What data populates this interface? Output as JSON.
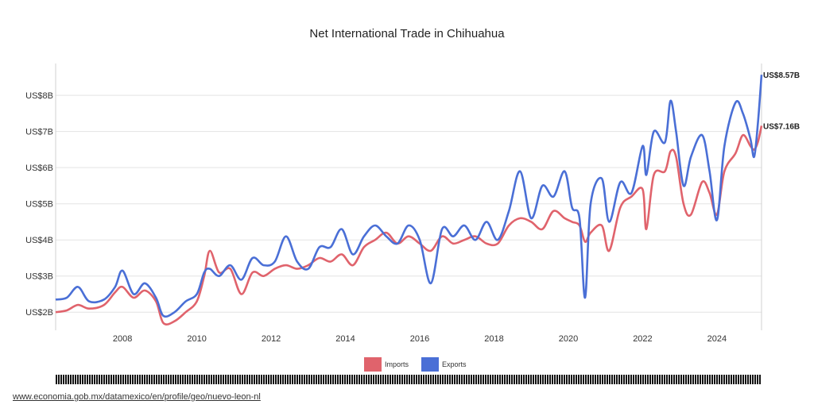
{
  "chart_data": {
    "type": "line",
    "title": "Net International Trade in Chihuahua",
    "xlabel": "",
    "ylabel": "",
    "xlim": [
      2006.2,
      2025.2
    ],
    "ylim": [
      1.5,
      8.75
    ],
    "y_ticks": [
      {
        "value": 2,
        "label": "US$2B"
      },
      {
        "value": 3,
        "label": "US$3B"
      },
      {
        "value": 4,
        "label": "US$4B"
      },
      {
        "value": 5,
        "label": "US$5B"
      },
      {
        "value": 6,
        "label": "US$6B"
      },
      {
        "value": 7,
        "label": "US$7B"
      },
      {
        "value": 8,
        "label": "US$8B"
      }
    ],
    "x_ticks": [
      {
        "value": 2008,
        "label": "2008"
      },
      {
        "value": 2010,
        "label": "2010"
      },
      {
        "value": 2012,
        "label": "2012"
      },
      {
        "value": 2014,
        "label": "2014"
      },
      {
        "value": 2016,
        "label": "2016"
      },
      {
        "value": 2018,
        "label": "2018"
      },
      {
        "value": 2020,
        "label": "2020"
      },
      {
        "value": 2022,
        "label": "2022"
      },
      {
        "value": 2024,
        "label": "2024"
      }
    ],
    "grid": "horizontal",
    "legend_position": "bottom-center",
    "series": [
      {
        "name": "Imports",
        "color": "#e0636c",
        "end_label": "US$7.16B",
        "points": [
          [
            2006.2,
            2.0
          ],
          [
            2006.5,
            2.05
          ],
          [
            2006.8,
            2.2
          ],
          [
            2007.1,
            2.1
          ],
          [
            2007.5,
            2.2
          ],
          [
            2007.8,
            2.55
          ],
          [
            2008.0,
            2.7
          ],
          [
            2008.3,
            2.4
          ],
          [
            2008.6,
            2.6
          ],
          [
            2008.9,
            2.3
          ],
          [
            2009.1,
            1.7
          ],
          [
            2009.4,
            1.75
          ],
          [
            2009.7,
            2.0
          ],
          [
            2010.0,
            2.3
          ],
          [
            2010.2,
            3.0
          ],
          [
            2010.35,
            3.7
          ],
          [
            2010.6,
            3.1
          ],
          [
            2010.9,
            3.2
          ],
          [
            2011.2,
            2.5
          ],
          [
            2011.5,
            3.1
          ],
          [
            2011.8,
            3.0
          ],
          [
            2012.1,
            3.2
          ],
          [
            2012.4,
            3.3
          ],
          [
            2012.7,
            3.2
          ],
          [
            2013.0,
            3.3
          ],
          [
            2013.3,
            3.5
          ],
          [
            2013.6,
            3.4
          ],
          [
            2013.9,
            3.6
          ],
          [
            2014.2,
            3.3
          ],
          [
            2014.5,
            3.8
          ],
          [
            2014.8,
            4.0
          ],
          [
            2015.1,
            4.2
          ],
          [
            2015.4,
            3.9
          ],
          [
            2015.7,
            4.1
          ],
          [
            2016.0,
            3.9
          ],
          [
            2016.3,
            3.7
          ],
          [
            2016.6,
            4.1
          ],
          [
            2016.9,
            3.9
          ],
          [
            2017.2,
            4.0
          ],
          [
            2017.5,
            4.1
          ],
          [
            2017.8,
            3.9
          ],
          [
            2018.1,
            3.9
          ],
          [
            2018.4,
            4.4
          ],
          [
            2018.7,
            4.6
          ],
          [
            2019.0,
            4.5
          ],
          [
            2019.3,
            4.3
          ],
          [
            2019.6,
            4.8
          ],
          [
            2019.9,
            4.6
          ],
          [
            2020.1,
            4.5
          ],
          [
            2020.3,
            4.4
          ],
          [
            2020.45,
            3.95
          ],
          [
            2020.6,
            4.2
          ],
          [
            2020.9,
            4.4
          ],
          [
            2021.1,
            3.7
          ],
          [
            2021.4,
            4.9
          ],
          [
            2021.7,
            5.2
          ],
          [
            2022.0,
            5.4
          ],
          [
            2022.1,
            4.3
          ],
          [
            2022.3,
            5.8
          ],
          [
            2022.6,
            5.9
          ],
          [
            2022.75,
            6.45
          ],
          [
            2022.9,
            6.3
          ],
          [
            2023.1,
            5.0
          ],
          [
            2023.3,
            4.7
          ],
          [
            2023.6,
            5.6
          ],
          [
            2023.8,
            5.3
          ],
          [
            2024.0,
            4.7
          ],
          [
            2024.2,
            5.9
          ],
          [
            2024.5,
            6.4
          ],
          [
            2024.7,
            6.9
          ],
          [
            2024.9,
            6.6
          ],
          [
            2025.0,
            6.5
          ],
          [
            2025.1,
            6.7
          ],
          [
            2025.2,
            7.16
          ]
        ]
      },
      {
        "name": "Exports",
        "color": "#4a6fd6",
        "end_label": "US$8.57B",
        "points": [
          [
            2006.2,
            2.35
          ],
          [
            2006.5,
            2.4
          ],
          [
            2006.8,
            2.7
          ],
          [
            2007.1,
            2.3
          ],
          [
            2007.5,
            2.35
          ],
          [
            2007.8,
            2.7
          ],
          [
            2008.0,
            3.15
          ],
          [
            2008.3,
            2.5
          ],
          [
            2008.6,
            2.8
          ],
          [
            2008.9,
            2.4
          ],
          [
            2009.1,
            1.9
          ],
          [
            2009.4,
            2.0
          ],
          [
            2009.7,
            2.3
          ],
          [
            2010.0,
            2.5
          ],
          [
            2010.2,
            3.1
          ],
          [
            2010.35,
            3.2
          ],
          [
            2010.6,
            3.0
          ],
          [
            2010.9,
            3.3
          ],
          [
            2011.2,
            2.9
          ],
          [
            2011.5,
            3.5
          ],
          [
            2011.8,
            3.3
          ],
          [
            2012.1,
            3.4
          ],
          [
            2012.4,
            4.1
          ],
          [
            2012.7,
            3.4
          ],
          [
            2013.0,
            3.2
          ],
          [
            2013.3,
            3.8
          ],
          [
            2013.6,
            3.8
          ],
          [
            2013.9,
            4.3
          ],
          [
            2014.2,
            3.6
          ],
          [
            2014.5,
            4.1
          ],
          [
            2014.8,
            4.4
          ],
          [
            2015.1,
            4.1
          ],
          [
            2015.4,
            3.9
          ],
          [
            2015.7,
            4.4
          ],
          [
            2016.0,
            4.0
          ],
          [
            2016.3,
            2.8
          ],
          [
            2016.6,
            4.3
          ],
          [
            2016.9,
            4.1
          ],
          [
            2017.2,
            4.4
          ],
          [
            2017.5,
            4.0
          ],
          [
            2017.8,
            4.5
          ],
          [
            2018.1,
            4.0
          ],
          [
            2018.4,
            4.8
          ],
          [
            2018.7,
            5.9
          ],
          [
            2019.0,
            4.6
          ],
          [
            2019.3,
            5.5
          ],
          [
            2019.6,
            5.2
          ],
          [
            2019.9,
            5.9
          ],
          [
            2020.1,
            4.9
          ],
          [
            2020.3,
            4.6
          ],
          [
            2020.45,
            2.4
          ],
          [
            2020.6,
            5.0
          ],
          [
            2020.9,
            5.7
          ],
          [
            2021.1,
            4.5
          ],
          [
            2021.4,
            5.6
          ],
          [
            2021.7,
            5.3
          ],
          [
            2022.0,
            6.6
          ],
          [
            2022.1,
            5.8
          ],
          [
            2022.3,
            7.0
          ],
          [
            2022.6,
            6.7
          ],
          [
            2022.75,
            7.85
          ],
          [
            2022.9,
            7.0
          ],
          [
            2023.1,
            5.5
          ],
          [
            2023.3,
            6.3
          ],
          [
            2023.6,
            6.9
          ],
          [
            2023.8,
            5.9
          ],
          [
            2024.0,
            4.55
          ],
          [
            2024.2,
            6.6
          ],
          [
            2024.5,
            7.8
          ],
          [
            2024.7,
            7.5
          ],
          [
            2024.9,
            6.8
          ],
          [
            2025.0,
            6.3
          ],
          [
            2025.1,
            7.2
          ],
          [
            2025.2,
            8.57
          ]
        ]
      }
    ]
  },
  "source_link": "www.economia.gob.mx/datamexico/en/profile/geo/nuevo-leon-nl"
}
